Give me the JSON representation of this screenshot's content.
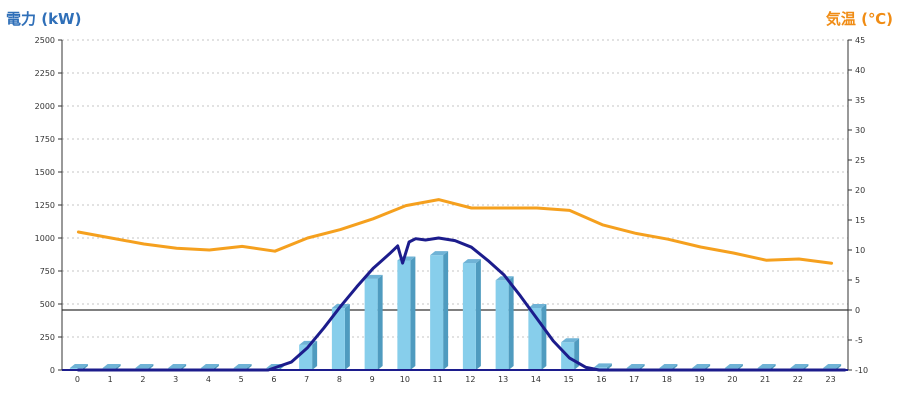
{
  "chart_data": {
    "type": "bar",
    "title_left": "電力 (kW)",
    "title_right": "気温 (℃)",
    "categories": [
      "0",
      "1",
      "2",
      "3",
      "4",
      "5",
      "6",
      "7",
      "8",
      "9",
      "10",
      "11",
      "12",
      "13",
      "14",
      "15",
      "16",
      "17",
      "18",
      "19",
      "20",
      "21",
      "22",
      "23"
    ],
    "y_left": {
      "min": 0,
      "max": 2500,
      "ticks": [
        "0",
        "250",
        "500",
        "750",
        "1000",
        "1250",
        "1500",
        "1750",
        "2000",
        "2250",
        "2500"
      ]
    },
    "y_right": {
      "min": -10,
      "max": 45,
      "ticks": [
        "-10",
        "-5",
        "0",
        "5",
        "10",
        "15",
        "20",
        "25",
        "30",
        "35",
        "40",
        "45"
      ]
    },
    "grid": true,
    "series": [
      {
        "kind": "bar",
        "axis": "left",
        "color": "#87ceeb",
        "values": [
          15,
          15,
          15,
          15,
          15,
          15,
          15,
          190,
          470,
          690,
          830,
          870,
          810,
          680,
          470,
          210,
          20,
          15,
          15,
          15,
          15,
          15,
          15,
          15
        ]
      },
      {
        "kind": "line",
        "axis": "left",
        "color": "#1c1c8c",
        "x": [
          0,
          5.8,
          6.5,
          7,
          7.5,
          8,
          8.5,
          9,
          9.5,
          9.75,
          9.9,
          10.1,
          10.3,
          10.6,
          11,
          11.5,
          12,
          12.5,
          13,
          13.5,
          14,
          14.5,
          15,
          15.5,
          15.9,
          16,
          23.4
        ],
        "values": [
          0,
          0,
          60,
          170,
          320,
          480,
          630,
          770,
          880,
          940,
          810,
          970,
          995,
          985,
          1000,
          980,
          930,
          830,
          720,
          560,
          390,
          220,
          90,
          20,
          0,
          0,
          0
        ]
      },
      {
        "kind": "line",
        "axis": "right",
        "color": "#f5a01e",
        "values": [
          13,
          12,
          11,
          10.3,
          10,
          10.6,
          9.8,
          12,
          13.4,
          15.2,
          17.4,
          18.4,
          17,
          17,
          17,
          16.6,
          14.2,
          12.8,
          11.8,
          10.5,
          9.5,
          8.3,
          8.5,
          7.8
        ]
      }
    ]
  }
}
